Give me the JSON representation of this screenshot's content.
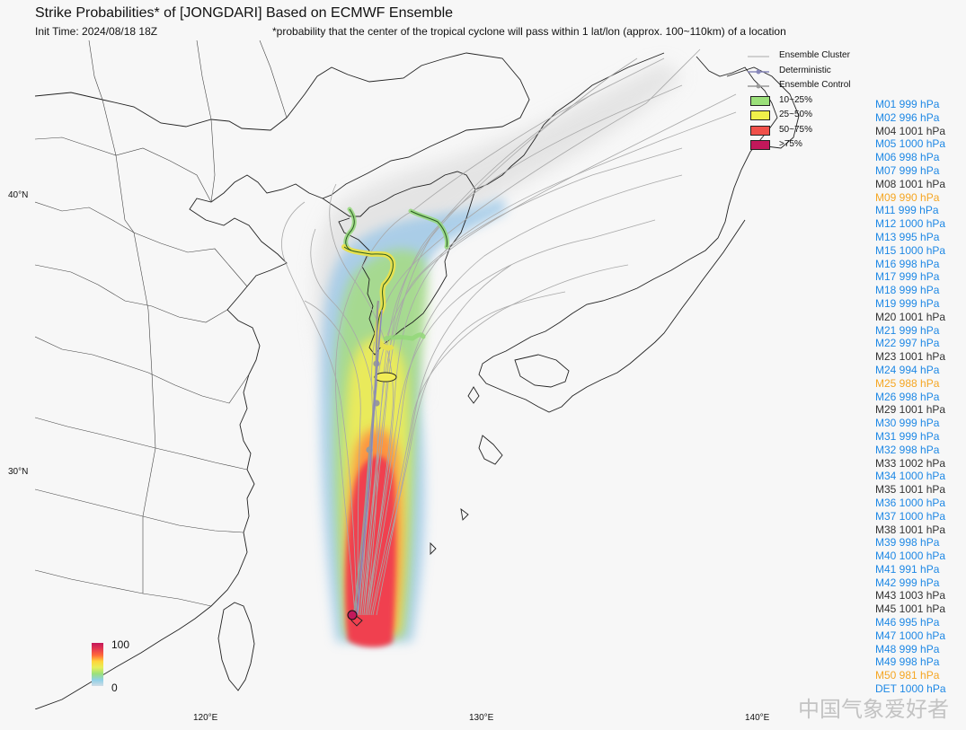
{
  "title": "Strike Probabilities* of [JONGDARI] Based on ECMWF Ensemble",
  "init_time": "Init Time: 2024/08/18 18Z",
  "footnote": "*probability that the center of the tropical cyclone will pass within 1 lat/lon (approx. 100~110km) of a location",
  "lat_labels": [
    "40°N",
    "30°N"
  ],
  "lon_labels": [
    "120°E",
    "130°E",
    "140°E"
  ],
  "legend": {
    "cluster": "Ensemble Cluster",
    "deterministic": "Deterministic",
    "control": "Ensemble Control",
    "bins": [
      {
        "label": "10~25%",
        "color": "#9be07a"
      },
      {
        "label": "25~50%",
        "color": "#f0f04a"
      },
      {
        "label": "50~75%",
        "color": "#f0504a"
      },
      {
        "label": ">75%",
        "color": "#c2185b"
      }
    ]
  },
  "colorbar": {
    "max": "100",
    "min": "0"
  },
  "members": [
    {
      "text": "M01 999 hPa",
      "color": "#1e88e5"
    },
    {
      "text": "M02 996 hPa",
      "color": "#1e88e5"
    },
    {
      "text": "M04 1001 hPa",
      "color": "#333333"
    },
    {
      "text": "M05 1000 hPa",
      "color": "#1e88e5"
    },
    {
      "text": "M06 998 hPa",
      "color": "#1e88e5"
    },
    {
      "text": "M07 999 hPa",
      "color": "#1e88e5"
    },
    {
      "text": "M08 1001 hPa",
      "color": "#333333"
    },
    {
      "text": "M09 990 hPa",
      "color": "#f5a623"
    },
    {
      "text": "M11 999 hPa",
      "color": "#1e88e5"
    },
    {
      "text": "M12 1000 hPa",
      "color": "#1e88e5"
    },
    {
      "text": "M13 995 hPa",
      "color": "#1e88e5"
    },
    {
      "text": "M15 1000 hPa",
      "color": "#1e88e5"
    },
    {
      "text": "M16 998 hPa",
      "color": "#1e88e5"
    },
    {
      "text": "M17 999 hPa",
      "color": "#1e88e5"
    },
    {
      "text": "M18 999 hPa",
      "color": "#1e88e5"
    },
    {
      "text": "M19 999 hPa",
      "color": "#1e88e5"
    },
    {
      "text": "M20 1001 hPa",
      "color": "#333333"
    },
    {
      "text": "M21 999 hPa",
      "color": "#1e88e5"
    },
    {
      "text": "M22 997 hPa",
      "color": "#1e88e5"
    },
    {
      "text": "M23 1001 hPa",
      "color": "#333333"
    },
    {
      "text": "M24 994 hPa",
      "color": "#1e88e5"
    },
    {
      "text": "M25 988 hPa",
      "color": "#f5a623"
    },
    {
      "text": "M26 998 hPa",
      "color": "#1e88e5"
    },
    {
      "text": "M29 1001 hPa",
      "color": "#333333"
    },
    {
      "text": "M30 999 hPa",
      "color": "#1e88e5"
    },
    {
      "text": "M31 999 hPa",
      "color": "#1e88e5"
    },
    {
      "text": "M32 998 hPa",
      "color": "#1e88e5"
    },
    {
      "text": "M33 1002 hPa",
      "color": "#333333"
    },
    {
      "text": "M34 1000 hPa",
      "color": "#1e88e5"
    },
    {
      "text": "M35 1001 hPa",
      "color": "#333333"
    },
    {
      "text": "M36 1000 hPa",
      "color": "#1e88e5"
    },
    {
      "text": "M37 1000 hPa",
      "color": "#1e88e5"
    },
    {
      "text": "M38 1001 hPa",
      "color": "#333333"
    },
    {
      "text": "M39 998 hPa",
      "color": "#1e88e5"
    },
    {
      "text": "M40 1000 hPa",
      "color": "#1e88e5"
    },
    {
      "text": "M41 991 hPa",
      "color": "#1e88e5"
    },
    {
      "text": "M42 999 hPa",
      "color": "#1e88e5"
    },
    {
      "text": "M43 1003 hPa",
      "color": "#333333"
    },
    {
      "text": "M45 1001 hPa",
      "color": "#333333"
    },
    {
      "text": "M46 995 hPa",
      "color": "#1e88e5"
    },
    {
      "text": "M47 1000 hPa",
      "color": "#1e88e5"
    },
    {
      "text": "M48 999 hPa",
      "color": "#1e88e5"
    },
    {
      "text": "M49 998 hPa",
      "color": "#1e88e5"
    },
    {
      "text": "M50 981 hPa",
      "color": "#f5a623"
    },
    {
      "text": "DET 1000 hPa",
      "color": "#1e88e5"
    }
  ],
  "watermark": "中国气象爱好者"
}
